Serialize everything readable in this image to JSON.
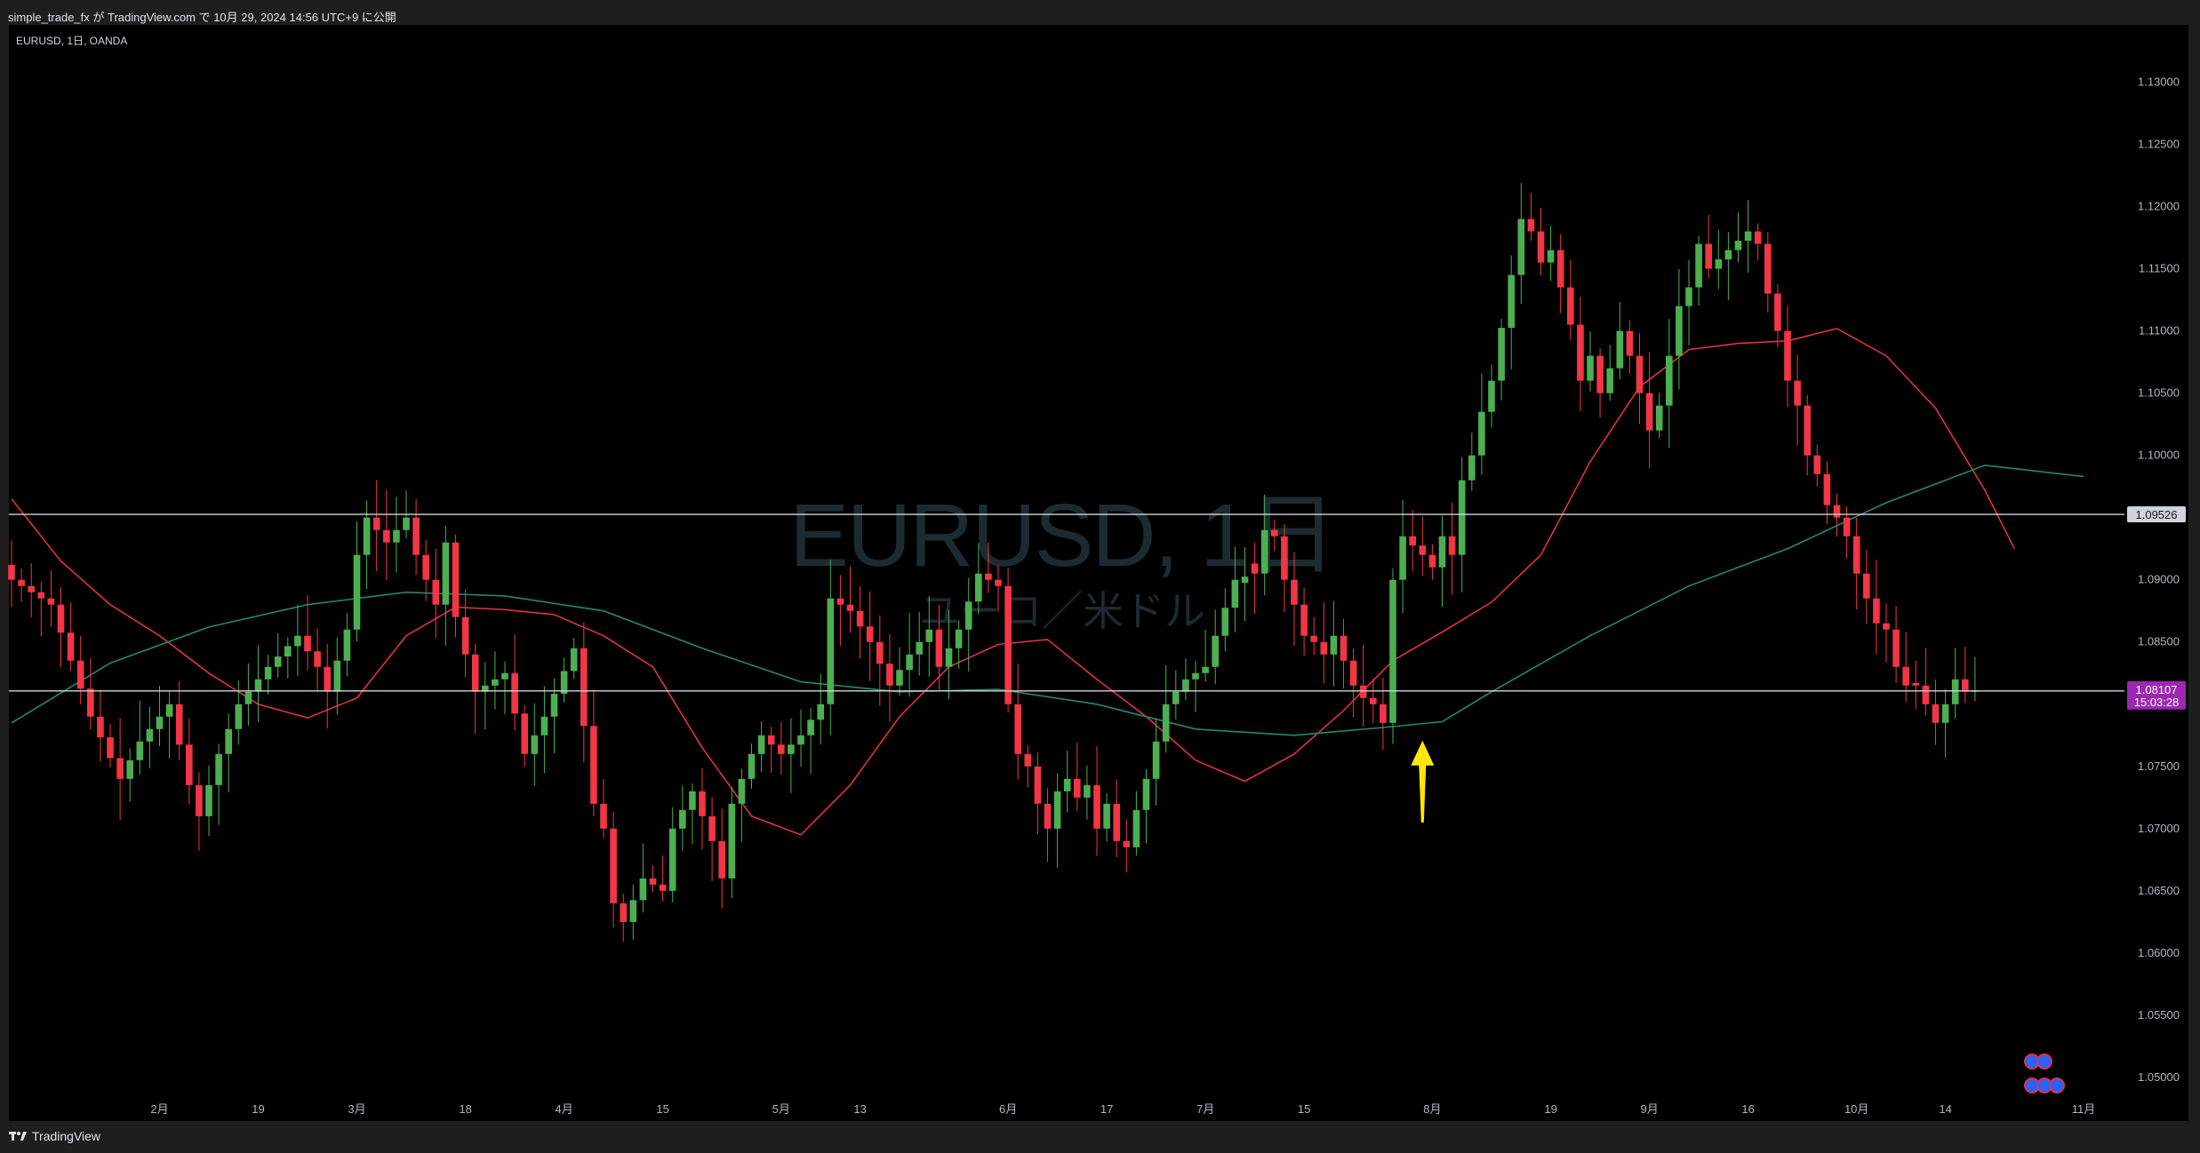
{
  "header": {
    "publish_line": "simple_trade_fx が TradingView.com で 10月 29, 2024 14:56 UTC+9 に公開"
  },
  "legend": {
    "symbol_line": "EURUSD, 1日, OANDA"
  },
  "watermark": {
    "title": "EURUSD, 1日",
    "subtitle": "ユーロ／米ドル"
  },
  "footer": {
    "brand": "TradingView"
  },
  "colors": {
    "background": "#000000",
    "up_candle": "#4caf50",
    "down_candle": "#f23645",
    "ma_fast": "#e0304a",
    "ma_slow": "#1f8a70",
    "hline": "#d1d4dc",
    "price_tag": "#9c27b0",
    "arrow": "#ffe60a"
  },
  "icons": [
    "tradingview-logo-icon",
    "economic-event-flag-icon",
    "up-arrow-annotation-icon"
  ],
  "chart_data": {
    "type": "candlestick",
    "title": "",
    "xlabel": "",
    "ylabel": "",
    "ylim": [
      1.0465,
      1.1346
    ],
    "y_ticks": [
      "1.13000",
      "1.12500",
      "1.12000",
      "1.11500",
      "1.11000",
      "1.10500",
      "1.10000",
      "1.09500",
      "1.09000",
      "1.08500",
      "1.08000",
      "1.07500",
      "1.07000",
      "1.06500",
      "1.06000",
      "1.05500",
      "1.05000"
    ],
    "x_ticks": [
      {
        "label": "2月",
        "index": 15
      },
      {
        "label": "19",
        "index": 25
      },
      {
        "label": "3月",
        "index": 35
      },
      {
        "label": "18",
        "index": 46
      },
      {
        "label": "4月",
        "index": 56
      },
      {
        "label": "15",
        "index": 66
      },
      {
        "label": "5月",
        "index": 78
      },
      {
        "label": "13",
        "index": 86
      },
      {
        "label": "6月",
        "index": 101
      },
      {
        "label": "17",
        "index": 111
      },
      {
        "label": "7月",
        "index": 121
      },
      {
        "label": "15",
        "index": 131
      },
      {
        "label": "8月",
        "index": 144
      },
      {
        "label": "19",
        "index": 156
      },
      {
        "label": "9月",
        "index": 166
      },
      {
        "label": "16",
        "index": 176
      },
      {
        "label": "10月",
        "index": 187
      },
      {
        "label": "14",
        "index": 196
      },
      {
        "label": "11月",
        "index": 210
      }
    ],
    "horizontal_lines": [
      {
        "price": 1.09526,
        "label": "1.09526",
        "role": "resistance"
      },
      {
        "price": 1.08107,
        "label": "1.08107",
        "role": "current",
        "countdown": "15:03:28"
      }
    ],
    "annotation": {
      "type": "arrow-up",
      "index": 143,
      "price_tip": 1.0775,
      "price_tail": 1.0705
    },
    "moving_averages": [
      {
        "name": "",
        "color": "#e0304a",
        "points": [
          [
            0,
            1.0965
          ],
          [
            5,
            1.0915
          ],
          [
            10,
            1.088
          ],
          [
            15,
            1.0855
          ],
          [
            20,
            1.0825
          ],
          [
            25,
            1.08
          ],
          [
            30,
            1.0789
          ],
          [
            35,
            1.0805
          ],
          [
            40,
            1.0855
          ],
          [
            45,
            1.0878
          ],
          [
            50,
            1.0876
          ],
          [
            55,
            1.0872
          ],
          [
            60,
            1.0855
          ],
          [
            65,
            1.083
          ],
          [
            70,
            1.0765
          ],
          [
            75,
            1.071
          ],
          [
            80,
            1.0695
          ],
          [
            85,
            1.0735
          ],
          [
            90,
            1.079
          ],
          [
            95,
            1.083
          ],
          [
            100,
            1.0848
          ],
          [
            105,
            1.0852
          ],
          [
            110,
            1.082
          ],
          [
            115,
            1.079
          ],
          [
            120,
            1.0755
          ],
          [
            125,
            1.0738
          ],
          [
            130,
            1.076
          ],
          [
            135,
            1.0795
          ],
          [
            140,
            1.0835
          ],
          [
            145,
            1.0858
          ],
          [
            150,
            1.0882
          ],
          [
            155,
            1.092
          ],
          [
            160,
            1.0995
          ],
          [
            165,
            1.1055
          ],
          [
            170,
            1.1085
          ],
          [
            175,
            1.109
          ],
          [
            180,
            1.1092
          ],
          [
            185,
            1.1102
          ],
          [
            190,
            1.108
          ],
          [
            195,
            1.1038
          ],
          [
            200,
            1.0972
          ],
          [
            203,
            1.0925
          ]
        ]
      },
      {
        "name": "",
        "color": "#1f8a70",
        "points": [
          [
            0,
            1.0785
          ],
          [
            10,
            1.0833
          ],
          [
            20,
            1.0862
          ],
          [
            30,
            1.088
          ],
          [
            40,
            1.089
          ],
          [
            50,
            1.0887
          ],
          [
            60,
            1.0875
          ],
          [
            70,
            1.0845
          ],
          [
            80,
            1.0818
          ],
          [
            90,
            1.081
          ],
          [
            100,
            1.0812
          ],
          [
            110,
            1.08
          ],
          [
            120,
            1.078
          ],
          [
            130,
            1.0775
          ],
          [
            140,
            1.0782
          ],
          [
            145,
            1.0786
          ],
          [
            150,
            1.081
          ],
          [
            160,
            1.0855
          ],
          [
            170,
            1.0895
          ],
          [
            180,
            1.0925
          ],
          [
            190,
            1.0962
          ],
          [
            200,
            1.0992
          ],
          [
            210,
            1.0983
          ]
        ]
      }
    ],
    "ohlc_source": "approximate daily series generated from anchors",
    "anchors": [
      [
        0,
        1.09
      ],
      [
        4,
        1.088
      ],
      [
        8,
        1.079
      ],
      [
        11,
        1.074
      ],
      [
        13,
        1.077
      ],
      [
        16,
        1.08
      ],
      [
        18,
        1.0735
      ],
      [
        19,
        1.071
      ],
      [
        21,
        1.076
      ],
      [
        23,
        1.08
      ],
      [
        26,
        1.083
      ],
      [
        29,
        1.0855
      ],
      [
        31,
        1.083
      ],
      [
        32,
        1.081
      ],
      [
        34,
        1.086
      ],
      [
        35,
        1.092
      ],
      [
        36,
        1.095
      ],
      [
        38,
        1.093
      ],
      [
        40,
        1.095
      ],
      [
        41,
        1.092
      ],
      [
        43,
        1.088
      ],
      [
        44,
        1.093
      ],
      [
        45,
        1.087
      ],
      [
        47,
        1.081
      ],
      [
        50,
        1.0825
      ],
      [
        52,
        1.076
      ],
      [
        54,
        1.079
      ],
      [
        57,
        1.0845
      ],
      [
        59,
        1.072
      ],
      [
        60,
        1.07
      ],
      [
        61,
        1.064
      ],
      [
        62,
        1.0625
      ],
      [
        64,
        1.066
      ],
      [
        66,
        1.065
      ],
      [
        67,
        1.07
      ],
      [
        69,
        1.073
      ],
      [
        70,
        1.071
      ],
      [
        71,
        1.069
      ],
      [
        72,
        1.066
      ],
      [
        73,
        1.072
      ],
      [
        75,
        1.076
      ],
      [
        76,
        1.0775
      ],
      [
        78,
        1.076
      ],
      [
        80,
        1.0775
      ],
      [
        82,
        1.08
      ],
      [
        83,
        1.0885
      ],
      [
        85,
        1.0875
      ],
      [
        87,
        1.085
      ],
      [
        89,
        1.0815
      ],
      [
        91,
        1.084
      ],
      [
        93,
        1.086
      ],
      [
        94,
        1.083
      ],
      [
        96,
        1.086
      ],
      [
        98,
        1.0905
      ],
      [
        100,
        1.0895
      ],
      [
        101,
        1.08
      ],
      [
        102,
        1.076
      ],
      [
        103,
        1.075
      ],
      [
        104,
        1.072
      ],
      [
        105,
        1.07
      ],
      [
        106,
        1.073
      ],
      [
        107,
        1.074
      ],
      [
        108,
        1.0725
      ],
      [
        109,
        1.0735
      ],
      [
        110,
        1.07
      ],
      [
        111,
        1.072
      ],
      [
        112,
        1.069
      ],
      [
        113,
        1.0685
      ],
      [
        114,
        1.0715
      ],
      [
        115,
        1.074
      ],
      [
        117,
        1.08
      ],
      [
        118,
        1.081
      ],
      [
        119,
        1.082
      ],
      [
        121,
        1.083
      ],
      [
        122,
        1.0855
      ],
      [
        124,
        1.09
      ],
      [
        126,
        1.0905
      ],
      [
        127,
        1.094
      ],
      [
        128,
        1.0935
      ],
      [
        129,
        1.09
      ],
      [
        130,
        1.088
      ],
      [
        131,
        1.0855
      ],
      [
        132,
        1.085
      ],
      [
        133,
        1.084
      ],
      [
        134,
        1.0855
      ],
      [
        136,
        1.0815
      ],
      [
        137,
        1.0805
      ],
      [
        138,
        1.08
      ],
      [
        139,
        1.0785
      ],
      [
        140,
        1.09
      ],
      [
        141,
        1.0935
      ],
      [
        143,
        1.092
      ],
      [
        144,
        1.091
      ],
      [
        145,
        1.0935
      ],
      [
        146,
        1.092
      ],
      [
        147,
        1.098
      ],
      [
        148,
        1.1
      ],
      [
        149,
        1.1035
      ],
      [
        150,
        1.106
      ],
      [
        152,
        1.1145
      ],
      [
        153,
        1.119
      ],
      [
        154,
        1.118
      ],
      [
        155,
        1.1155
      ],
      [
        156,
        1.1165
      ],
      [
        158,
        1.1105
      ],
      [
        159,
        1.106
      ],
      [
        160,
        1.108
      ],
      [
        161,
        1.105
      ],
      [
        162,
        1.107
      ],
      [
        163,
        1.11
      ],
      [
        164,
        1.108
      ],
      [
        165,
        1.105
      ],
      [
        166,
        1.102
      ],
      [
        167,
        1.104
      ],
      [
        168,
        1.108
      ],
      [
        169,
        1.112
      ],
      [
        170,
        1.1135
      ],
      [
        171,
        1.117
      ],
      [
        172,
        1.115
      ],
      [
        174,
        1.1165
      ],
      [
        176,
        1.118
      ],
      [
        177,
        1.117
      ],
      [
        178,
        1.113
      ],
      [
        179,
        1.11
      ],
      [
        180,
        1.106
      ],
      [
        181,
        1.104
      ],
      [
        182,
        1.1
      ],
      [
        183,
        1.0985
      ],
      [
        184,
        1.096
      ],
      [
        185,
        1.095
      ],
      [
        186,
        1.0935
      ],
      [
        187,
        1.0905
      ],
      [
        188,
        1.0885
      ],
      [
        189,
        1.0865
      ],
      [
        190,
        1.086
      ],
      [
        191,
        1.083
      ],
      [
        192,
        1.0815
      ],
      [
        193,
        1.0815
      ],
      [
        194,
        1.08
      ],
      [
        195,
        1.0785
      ],
      [
        196,
        1.08
      ],
      [
        197,
        1.082
      ],
      [
        198,
        1.081
      ],
      [
        199,
        1.0811
      ]
    ]
  }
}
